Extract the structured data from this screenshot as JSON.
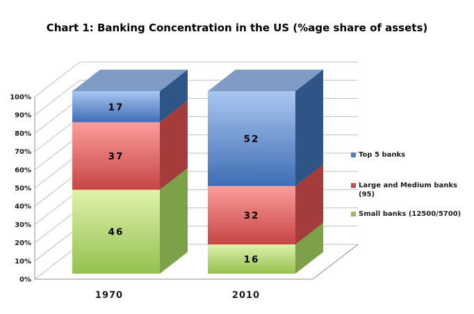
{
  "title": "Chart 1: Banking Concentration in the US (%age share of assets)",
  "chart_data": {
    "type": "bar",
    "stacked": true,
    "projection": "3d",
    "title": "Chart 1: Banking Concentration in the US (%age share of assets)",
    "categories": [
      "1970",
      "2010"
    ],
    "series": [
      {
        "name": "Small banks (12500/5700)",
        "values": [
          46,
          16
        ],
        "color": "#9BBB59",
        "front_gradient": [
          "#DFF2AC",
          "#94C04F"
        ],
        "side": "#7CA148",
        "top": "#8FB353"
      },
      {
        "name": "Large and Medium banks (95)",
        "values": [
          37,
          32
        ],
        "color": "#C0504D",
        "front_gradient": [
          "#FB9D9B",
          "#C74545"
        ],
        "side": "#A43C3C",
        "top": "#C46663"
      },
      {
        "name": "Top 5 banks",
        "values": [
          17,
          52
        ],
        "color": "#4F81BD",
        "front_gradient": [
          "#A9C6F0",
          "#3F6EB5"
        ],
        "side": "#2E5586",
        "top": "#7F9BC6"
      }
    ],
    "value_labels": {
      "1970": {
        "Small banks (12500/5700)": 46,
        "Large and Medium banks (95)": 37,
        "Top 5 banks": 17
      },
      "2010": {
        "Small banks (12500/5700)": 16,
        "Large and Medium banks (95)": 32,
        "Top 5 banks": 52
      }
    },
    "xlabel": "",
    "ylabel": "",
    "ylim": [
      0,
      100
    ],
    "yticks": [
      "0%",
      "10%",
      "20%",
      "30%",
      "40%",
      "50%",
      "60%",
      "70%",
      "80%",
      "90%",
      "100%"
    ],
    "grid": true,
    "legend_position": "right",
    "legend_items": [
      {
        "lines": [
          "Top 5 banks"
        ],
        "color": "#4F81BD"
      },
      {
        "lines": [
          "Large and Medium banks",
          "(95)"
        ],
        "color": "#C0504D"
      },
      {
        "lines": [
          "Small banks (12500/5700)"
        ],
        "color": "#9BBB59"
      }
    ]
  },
  "colors": {
    "background": "#FFFFFF",
    "gridline": "#BFBFBF",
    "axis_line": "#8C8C8C",
    "tick_text": "#1A1A1A",
    "value_text": "#000000",
    "category_text": "#1A1A1A"
  }
}
